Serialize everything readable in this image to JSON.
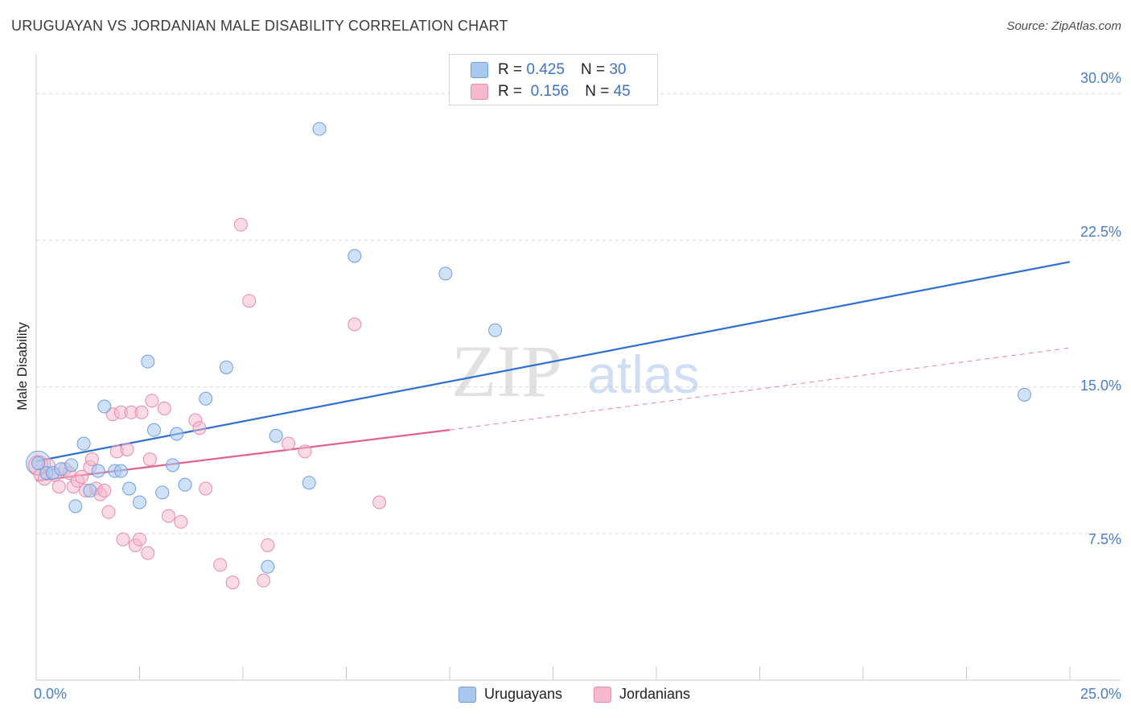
{
  "header": {
    "title": "URUGUAYAN VS JORDANIAN MALE DISABILITY CORRELATION CHART",
    "source": "Source: ZipAtlas.com"
  },
  "watermark": {
    "zip": "ZIP",
    "atlas": "atlas"
  },
  "legend": {
    "rows": [
      {
        "r_label": "R =",
        "r_value": "0.425",
        "n_label": "N =",
        "n_value": "30",
        "color": "#a8c8f0"
      },
      {
        "r_label": "R =",
        "r_value": "0.156",
        "n_label": "N =",
        "n_value": "45",
        "color": "#f6b8cc"
      }
    ]
  },
  "bottom_legend": [
    {
      "label": "Uruguayans",
      "color": "#a8c8f0"
    },
    {
      "label": "Jordanians",
      "color": "#f6b8cc"
    }
  ],
  "colors": {
    "blue_fill": "#a8c8f0",
    "blue_stroke": "#6f9ee0",
    "blue_line": "#2f6fd0",
    "pink_fill": "#f6b8cc",
    "pink_stroke": "#e88aaa",
    "pink_line": "#e0628f",
    "grid": "#d9d9d9",
    "axis_text": "#4a7cc9"
  },
  "chart_data": {
    "type": "scatter",
    "title": "URUGUAYAN VS JORDANIAN MALE DISABILITY CORRELATION CHART",
    "xlabel": "",
    "ylabel": "Male Disability",
    "xlim": [
      0,
      25
    ],
    "ylim": [
      0,
      31.5
    ],
    "x_tick_labels": [
      "0.0%",
      "25.0%"
    ],
    "y_ticks": [
      7.5,
      15.0,
      22.5,
      30.0
    ],
    "y_tick_labels": [
      "7.5%",
      "15.0%",
      "22.5%",
      "30.0%"
    ],
    "grid": true,
    "legend_position": "top-center",
    "series": [
      {
        "name": "Uruguayans",
        "r": 0.425,
        "n": 30,
        "points": [
          [
            0.05,
            11.1
          ],
          [
            0.25,
            10.6
          ],
          [
            0.4,
            10.6
          ],
          [
            0.6,
            10.8
          ],
          [
            0.85,
            11.0
          ],
          [
            0.95,
            8.9
          ],
          [
            1.15,
            12.1
          ],
          [
            1.3,
            9.7
          ],
          [
            1.5,
            10.7
          ],
          [
            1.65,
            14.0
          ],
          [
            1.9,
            10.7
          ],
          [
            2.05,
            10.7
          ],
          [
            2.25,
            9.8
          ],
          [
            2.5,
            9.1
          ],
          [
            2.7,
            16.3
          ],
          [
            2.85,
            12.8
          ],
          [
            3.05,
            9.6
          ],
          [
            3.3,
            11.0
          ],
          [
            3.4,
            12.6
          ],
          [
            3.6,
            10.0
          ],
          [
            4.1,
            14.4
          ],
          [
            4.6,
            16.0
          ],
          [
            5.6,
            5.8
          ],
          [
            5.8,
            12.5
          ],
          [
            6.6,
            10.1
          ],
          [
            6.85,
            28.2
          ],
          [
            7.7,
            21.7
          ],
          [
            9.9,
            20.8
          ],
          [
            11.1,
            17.9
          ],
          [
            23.9,
            14.6
          ]
        ],
        "trend": {
          "x": [
            0,
            25
          ],
          "y": [
            11.2,
            21.4
          ]
        }
      },
      {
        "name": "Jordanians",
        "r": 0.156,
        "n": 45,
        "points": [
          [
            0.1,
            10.5
          ],
          [
            0.2,
            10.3
          ],
          [
            0.3,
            11.0
          ],
          [
            0.45,
            10.5
          ],
          [
            0.55,
            9.9
          ],
          [
            0.7,
            10.8
          ],
          [
            0.8,
            10.6
          ],
          [
            0.9,
            9.9
          ],
          [
            1.0,
            10.2
          ],
          [
            1.1,
            10.4
          ],
          [
            1.2,
            9.7
          ],
          [
            1.3,
            10.9
          ],
          [
            1.35,
            11.3
          ],
          [
            1.45,
            9.8
          ],
          [
            1.55,
            9.5
          ],
          [
            1.65,
            9.7
          ],
          [
            1.75,
            8.6
          ],
          [
            1.85,
            13.6
          ],
          [
            1.95,
            11.7
          ],
          [
            2.05,
            13.7
          ],
          [
            2.1,
            7.2
          ],
          [
            2.2,
            11.8
          ],
          [
            2.3,
            13.7
          ],
          [
            2.4,
            6.9
          ],
          [
            2.5,
            7.2
          ],
          [
            2.55,
            13.7
          ],
          [
            2.7,
            6.5
          ],
          [
            2.75,
            11.3
          ],
          [
            2.8,
            14.3
          ],
          [
            3.1,
            13.9
          ],
          [
            3.2,
            8.4
          ],
          [
            3.5,
            8.1
          ],
          [
            3.85,
            13.3
          ],
          [
            3.95,
            12.9
          ],
          [
            4.1,
            9.8
          ],
          [
            4.45,
            5.9
          ],
          [
            4.75,
            5.0
          ],
          [
            4.95,
            23.3
          ],
          [
            5.15,
            19.4
          ],
          [
            5.5,
            5.1
          ],
          [
            5.6,
            6.9
          ],
          [
            6.1,
            12.1
          ],
          [
            6.5,
            11.7
          ],
          [
            7.7,
            18.2
          ],
          [
            8.3,
            9.1
          ]
        ],
        "trend_solid": {
          "x": [
            0,
            10
          ],
          "y": [
            10.2,
            12.8
          ]
        },
        "trend_dashed": {
          "x": [
            10,
            25
          ],
          "y": [
            12.8,
            17.0
          ]
        }
      }
    ]
  }
}
